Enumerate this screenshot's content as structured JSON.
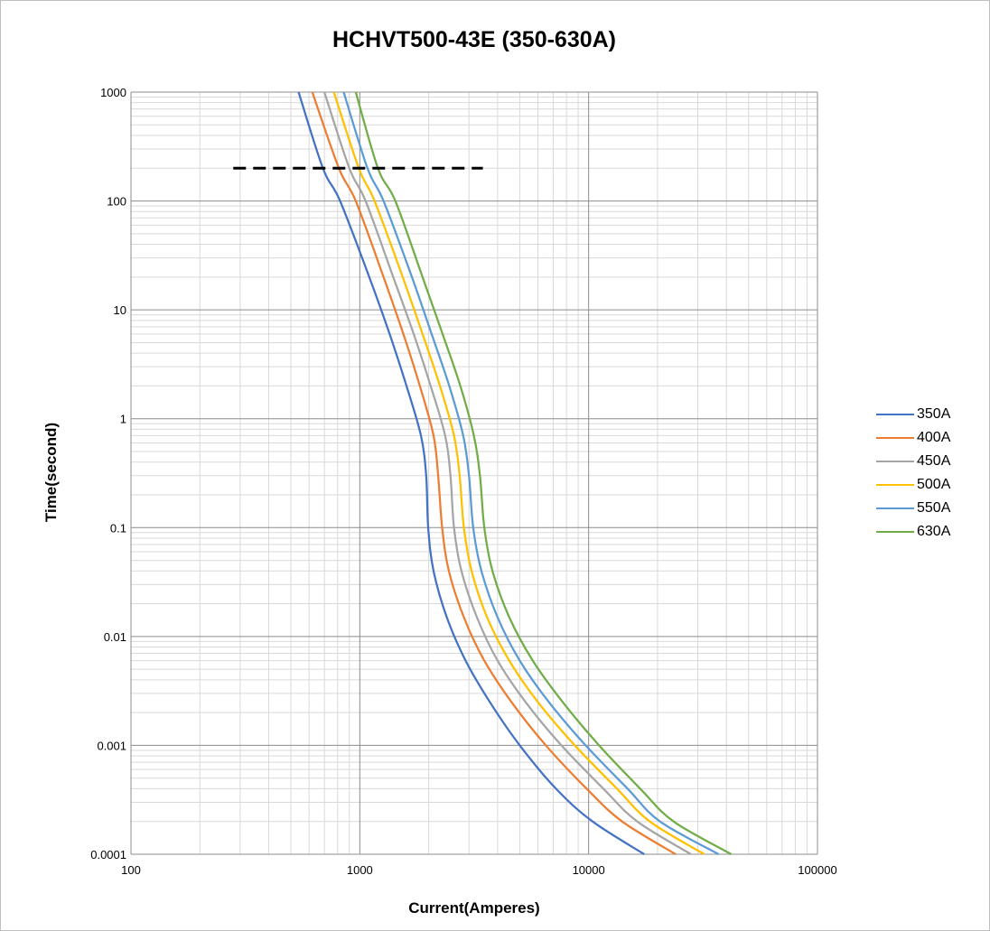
{
  "chart_data": {
    "type": "line",
    "title": "HCHVT500-43E  (350-630A)",
    "xlabel": "Current(Amperes)",
    "ylabel": "Time(second)",
    "x_scale": "log",
    "y_scale": "log",
    "xlim": [
      100,
      100000
    ],
    "ylim": [
      0.0001,
      1000
    ],
    "x_ticks": [
      "100",
      "1000",
      "10000",
      "100000"
    ],
    "y_ticks": [
      "0.0001",
      "0.001",
      "0.01",
      "0.1",
      "1",
      "10",
      "100",
      "1000"
    ],
    "grid": true,
    "legend_position": "right",
    "reference_line": {
      "style": "dashed",
      "color": "#000000",
      "y": 200,
      "x_start": 280,
      "x_end": 3450
    },
    "series": [
      {
        "name": "350A",
        "color": "#4472C4",
        "points": [
          [
            540,
            1000
          ],
          [
            690,
            200
          ],
          [
            820,
            100
          ],
          [
            1100,
            20
          ],
          [
            1350,
            6
          ],
          [
            1600,
            2
          ],
          [
            1850,
            0.7
          ],
          [
            1950,
            0.3
          ],
          [
            1990,
            0.1
          ],
          [
            2100,
            0.04
          ],
          [
            2400,
            0.015
          ],
          [
            2900,
            0.006
          ],
          [
            3700,
            0.0025
          ],
          [
            5000,
            0.001
          ],
          [
            7200,
            0.0004
          ],
          [
            10400,
            0.0002
          ],
          [
            17500,
            0.0001
          ]
        ]
      },
      {
        "name": "400A",
        "color": "#ED7D31",
        "points": [
          [
            620,
            1000
          ],
          [
            810,
            200
          ],
          [
            960,
            100
          ],
          [
            1270,
            20
          ],
          [
            1550,
            6
          ],
          [
            1830,
            2
          ],
          [
            2100,
            0.7
          ],
          [
            2200,
            0.3
          ],
          [
            2290,
            0.1
          ],
          [
            2450,
            0.04
          ],
          [
            2850,
            0.015
          ],
          [
            3500,
            0.006
          ],
          [
            4600,
            0.0025
          ],
          [
            6500,
            0.001
          ],
          [
            9800,
            0.0004
          ],
          [
            14000,
            0.0002
          ],
          [
            24000,
            0.0001
          ]
        ]
      },
      {
        "name": "450A",
        "color": "#A5A5A5",
        "points": [
          [
            700,
            1000
          ],
          [
            900,
            200
          ],
          [
            1060,
            100
          ],
          [
            1400,
            20
          ],
          [
            1720,
            6
          ],
          [
            2040,
            2
          ],
          [
            2360,
            0.7
          ],
          [
            2490,
            0.3
          ],
          [
            2580,
            0.1
          ],
          [
            2780,
            0.04
          ],
          [
            3250,
            0.015
          ],
          [
            4000,
            0.006
          ],
          [
            5300,
            0.0025
          ],
          [
            7600,
            0.001
          ],
          [
            11600,
            0.0004
          ],
          [
            16300,
            0.0002
          ],
          [
            28000,
            0.0001
          ]
        ]
      },
      {
        "name": "500A",
        "color": "#FFC000",
        "points": [
          [
            770,
            1000
          ],
          [
            990,
            200
          ],
          [
            1160,
            100
          ],
          [
            1540,
            20
          ],
          [
            1880,
            6
          ],
          [
            2240,
            2
          ],
          [
            2580,
            0.7
          ],
          [
            2730,
            0.3
          ],
          [
            2850,
            0.1
          ],
          [
            3080,
            0.04
          ],
          [
            3600,
            0.015
          ],
          [
            4500,
            0.006
          ],
          [
            6000,
            0.0025
          ],
          [
            8700,
            0.001
          ],
          [
            13300,
            0.0004
          ],
          [
            18500,
            0.0002
          ],
          [
            32000,
            0.0001
          ]
        ]
      },
      {
        "name": "550A",
        "color": "#5B9BD5",
        "points": [
          [
            850,
            1000
          ],
          [
            1080,
            200
          ],
          [
            1270,
            100
          ],
          [
            1690,
            20
          ],
          [
            2060,
            6
          ],
          [
            2460,
            2
          ],
          [
            2830,
            0.7
          ],
          [
            3000,
            0.3
          ],
          [
            3130,
            0.1
          ],
          [
            3400,
            0.04
          ],
          [
            4000,
            0.015
          ],
          [
            5000,
            0.006
          ],
          [
            6700,
            0.0025
          ],
          [
            9700,
            0.001
          ],
          [
            14800,
            0.0004
          ],
          [
            20500,
            0.0002
          ],
          [
            37000,
            0.0001
          ]
        ]
      },
      {
        "name": "630A",
        "color": "#70AD47",
        "points": [
          [
            960,
            1000
          ],
          [
            1200,
            200
          ],
          [
            1430,
            100
          ],
          [
            1880,
            20
          ],
          [
            2300,
            6
          ],
          [
            2750,
            2
          ],
          [
            3150,
            0.7
          ],
          [
            3350,
            0.3
          ],
          [
            3500,
            0.1
          ],
          [
            3800,
            0.04
          ],
          [
            4500,
            0.015
          ],
          [
            5700,
            0.006
          ],
          [
            7700,
            0.0025
          ],
          [
            11100,
            0.001
          ],
          [
            16800,
            0.0004
          ],
          [
            23500,
            0.0002
          ],
          [
            42000,
            0.0001
          ]
        ]
      }
    ]
  }
}
